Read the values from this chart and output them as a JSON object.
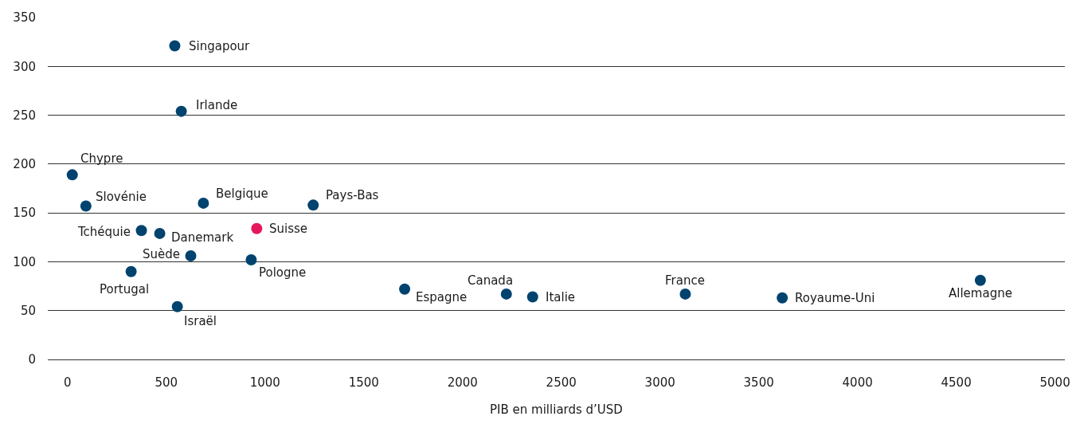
{
  "chart_data": {
    "type": "scatter",
    "xlabel": "PIB en milliards d’USD",
    "x": [
      543,
      576,
      24,
      93,
      688,
      1244,
      958,
      374,
      467,
      624,
      930,
      322,
      556,
      1707,
      2222,
      2355,
      3128,
      3619,
      4622
    ],
    "values": [
      321,
      254,
      189,
      157,
      160,
      158,
      134,
      132,
      129,
      106,
      102,
      90,
      54,
      72,
      67,
      64,
      67,
      63,
      81
    ],
    "colors": [
      "#00436e",
      "#00436e",
      "#00436e",
      "#00436e",
      "#00436e",
      "#00436e",
      "#e5175a",
      "#00436e",
      "#00436e",
      "#00436e",
      "#00436e",
      "#00436e",
      "#00436e",
      "#00436e",
      "#00436e",
      "#00436e",
      "#00436e",
      "#00436e",
      "#00436e"
    ],
    "annotations": [
      {
        "text": "Singapour",
        "x": 543,
        "y": 321
      },
      {
        "text": "Irlande",
        "x": 576,
        "y": 254
      },
      {
        "text": "Chypre",
        "x": 24,
        "y": 189
      },
      {
        "text": "Slovénie",
        "x": 93,
        "y": 157
      },
      {
        "text": "Belgique",
        "x": 688,
        "y": 160
      },
      {
        "text": "Pays-Bas",
        "x": 1244,
        "y": 158
      },
      {
        "text": "Suisse",
        "x": 958,
        "y": 134
      },
      {
        "text": "Tchéquie",
        "x": 374,
        "y": 132
      },
      {
        "text": "Danemark",
        "x": 467,
        "y": 129
      },
      {
        "text": "Suède",
        "x": 624,
        "y": 106
      },
      {
        "text": "Pologne",
        "x": 930,
        "y": 102
      },
      {
        "text": "Portugal",
        "x": 322,
        "y": 90
      },
      {
        "text": "Israël",
        "x": 556,
        "y": 54
      },
      {
        "text": "Espagne",
        "x": 1707,
        "y": 72
      },
      {
        "text": "Canada",
        "x": 2222,
        "y": 67
      },
      {
        "text": "Italie",
        "x": 2355,
        "y": 64
      },
      {
        "text": "France",
        "x": 3128,
        "y": 67
      },
      {
        "text": "Royaume-Uni",
        "x": 3619,
        "y": 63
      },
      {
        "text": "Allemagne",
        "x": 4622,
        "y": 81
      }
    ],
    "xlim": [
      -100,
      5050
    ],
    "ylim": [
      0,
      350
    ],
    "xticks": [
      0,
      500,
      1000,
      1500,
      2000,
      2500,
      3000,
      3500,
      4000,
      4500,
      5000
    ],
    "yticks": [
      0,
      50,
      100,
      150,
      200,
      250,
      300,
      350
    ],
    "grid": "y",
    "marker": "circle"
  }
}
